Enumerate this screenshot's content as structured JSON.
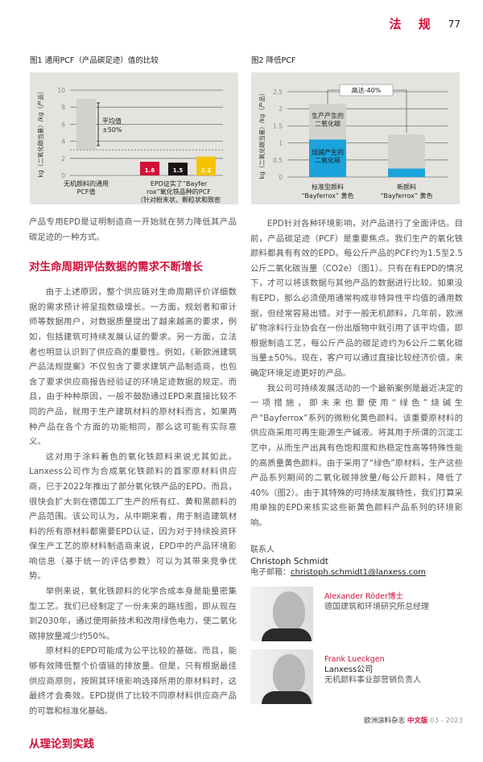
{
  "header": {
    "section": "法 规",
    "page_number": "77"
  },
  "figures": [
    {
      "title": "图1 通用PCF（产品碳足迹）值的比较"
    },
    {
      "title": "图2 降低PCF"
    }
  ],
  "chart_data": [
    {
      "type": "bar",
      "ylabel": "kg（二氧化碳当量）/kg（产品）",
      "ylim": [
        0,
        10
      ],
      "yticks": [
        "0",
        "2",
        "4",
        "6",
        "8",
        "10"
      ],
      "categories": [
        "无机颜料的通用PCF值",
        "EPD证实了“Bayferrox”氧化铁品种的PCF（针对粉末状、颗粒状和致密颜料）"
      ],
      "range_bar": {
        "low": 3,
        "high": 9,
        "annotation": "平均值 ±50%",
        "error_low": 3.5,
        "error_high": 8.5,
        "color": "#d2d1cd"
      },
      "bars": [
        {
          "value": 1.6,
          "label": "1.6",
          "color": "#d0103a"
        },
        {
          "value": 1.5,
          "label": "1.5",
          "color": "#1a1414"
        },
        {
          "value": 2.2,
          "label": "2.2",
          "color": "#f5c400"
        }
      ],
      "grid": true
    },
    {
      "type": "bar",
      "stacked": true,
      "ylabel": "kg（二氧化碳当量）/kg（产品）",
      "ylim": [
        0,
        2.5
      ],
      "yticks": [
        "0",
        "0.5",
        "1",
        "1.5",
        "2",
        "2.5"
      ],
      "categories": [
        "标准型颜料 “Bayferrox” 黄色",
        "新颜料 “Bayferrox” 黄色"
      ],
      "series": [
        {
          "name": "烧碱产生的二氧化碳",
          "values": [
            1.1,
            0.25
          ],
          "color": "#1aa3dc"
        },
        {
          "name": "生产产生的二氧化碳",
          "values": [
            1.05,
            1.0
          ],
          "color": "#d2d1cd"
        }
      ],
      "annotation": "高达-40%",
      "grid": true
    }
  ],
  "left": {
    "intro": "产品专用EPD是证明制造商一开始就在努力降低其产品碳足迹的一种方式。",
    "heading1": "对生命周期评估数据的需求不断增长",
    "p1": "由于上述原因，整个供应链对生命周期评价详细数据的需求预计将呈指数级增长。一方面，规划者和审计师等数据用户，对数据质量提出了越来越高的要求，例如，包括建筑可持续发展认证的要求。另一方面，立法者也明显认识到了供应商的重要性。例如，《新欧洲建筑产品法规提案》不仅包含了要求建筑产品制造商，也包含了要求供应商报告经验证的环境足迹数据的规定。而且，由于种种原因，一般不鼓励通过EPD来直接比较不同的产品，就用于生产建筑材料的原材料而言，如果两种产品在各个方面的功能相同，那么这可能有实际意义。",
    "p2": "这对用于涂料着色的氧化铁颜料来说尤其如此。Lanxess公司作为合成氧化铁颜料的首家原材料供应商，已于2022年推出了部分氧化铁产品的EPD。而且，很快会扩大到在德国工厂生产的所有红、黄和黑颜料的产品范围。该公司认为，从中期来看，用于制造建筑材料的所有原材料都需要EPD认证，因为对于持续投资环保生产工艺的原材料制造商来说，EPD中的产品环境影响信息（基于统一的评估参数）可以为其带来竞争优势。",
    "p3": "举例来说，氧化铁颜料的化学合成本身是能量密集型工艺。我们已经制定了一份未来的路线图，即从现在到2030年，通过使用新技术和改用绿色电力，使二氧化碳排放量减少约50%。",
    "p4": "原材料的EPD可能成为公平比较的基础。而且，能够有效降低整个价值链的排放量。但是，只有根据最佳供应商原则，按照其环境影响选择所用的原材料时，这最终才会奏效。EPD提供了比较不同原材料供应商产品的可靠和标准化基础。",
    "heading2": "从理论到实践"
  },
  "right": {
    "p1": "EPD针对各种环境影响，对产品进行了全面评估。目前，产品碳足迹（PCF）是重要焦点。我们生产的氧化铁颜料都具有有效的EPD。每公斤产品的PCF约为1.5至2.5公斤二氧化碳当量（CO2e）（图1）。只有在有EPD的情况下，才可以将该数据与其他产品的数据进行比较。如果没有EPD，那么必须使用通常构成非特异性平均值的通用数据，但经常容易出错。对于一般无机颜料，几年前，欧洲矿物涂料行业协会在一份出版物中就引用了该平均值，即根据制造工艺，每公斤产品的碳足迹约为6公斤二氧化碳当量±50%。现在，客户可以通过直接比较经济价值，来确定环境足迹更好的产品。",
    "p2": "我公司可持续发展活动的一个最新案例是最近决定的一项措施，即未来也要使用“绿色”烧碱生产“Bayferrox”系列的微粉化黄色颜料。该重要原材料的供应商采用可再生能源生产碱液。将其用于所谓的沉淀工艺中，从而生产出具有色饱和度和热稳定性高等特殊性能的高质量黄色颜料。由于采用了“绿色”原材料，生产这些产品系列期间的二氧化碳排放量/每公斤颜料，降低了40%（图2）。由于其特殊的可持续发展特性，我们打算采用单独的EPD来核实这些新黄色颜料产品系列的环境影响。"
  },
  "contact": {
    "label": "联系人",
    "name": "Christoph Schmidt",
    "email_label": "电子邮箱：",
    "email": "christoph.schmidt1@lanxess.com"
  },
  "people": [
    {
      "name": "Alexander Röder博士",
      "line1": "德国建筑和环境研究所总经理"
    },
    {
      "name": "Frank Lueckgen",
      "line1": "Lanxess公司",
      "line2": "无机颜料事业部营销负责人"
    }
  ],
  "footer": {
    "magazine": "欧洲涂料杂志",
    "edition": "中文版",
    "issue": "03 - 2023"
  }
}
